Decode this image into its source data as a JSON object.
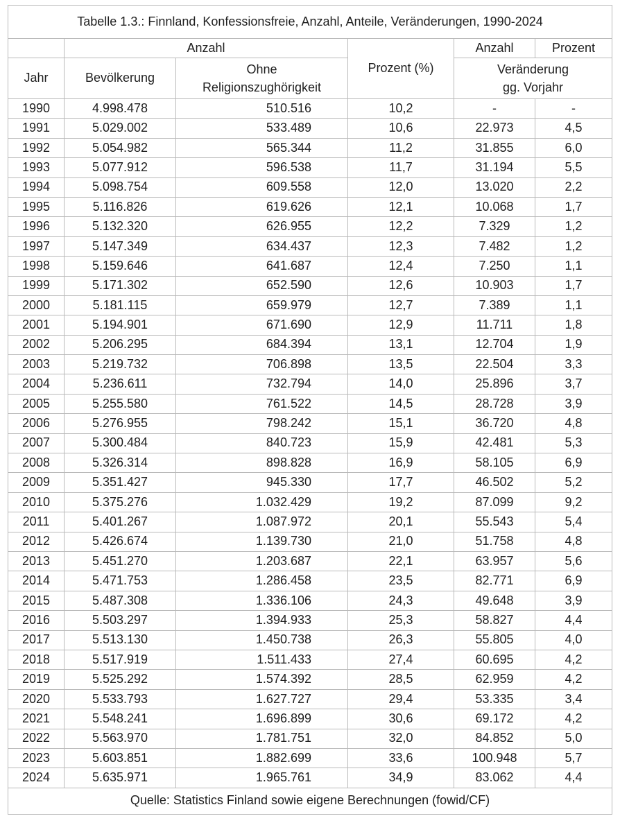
{
  "title": "Tabelle 1.3.: Finnland, Konfessionsfreie, Anzahl, Anteile, Veränderungen, 1990-2024",
  "header": {
    "group_anzahl": "Anzahl",
    "col_jahr": "Jahr",
    "col_bevoelkerung": "Bevölkerung",
    "col_ohne_line1": "Ohne",
    "col_ohne_line2": "Religionszughörigkeit",
    "col_prozent_pct": "Prozent (%)",
    "group_veraenderung_anzahl": "Anzahl",
    "group_veraenderung_prozent": "Prozent",
    "col_veraenderung_line1": "Veränderung",
    "col_veraenderung_line2": "gg. Vorjahr"
  },
  "rows": [
    [
      "1990",
      "4.998.478",
      "510.516",
      "10,2",
      "-",
      "-"
    ],
    [
      "1991",
      "5.029.002",
      "533.489",
      "10,6",
      "22.973",
      "4,5"
    ],
    [
      "1992",
      "5.054.982",
      "565.344",
      "11,2",
      "31.855",
      "6,0"
    ],
    [
      "1993",
      "5.077.912",
      "596.538",
      "11,7",
      "31.194",
      "5,5"
    ],
    [
      "1994",
      "5.098.754",
      "609.558",
      "12,0",
      "13.020",
      "2,2"
    ],
    [
      "1995",
      "5.116.826",
      "619.626",
      "12,1",
      "10.068",
      "1,7"
    ],
    [
      "1996",
      "5.132.320",
      "626.955",
      "12,2",
      "7.329",
      "1,2"
    ],
    [
      "1997",
      "5.147.349",
      "634.437",
      "12,3",
      "7.482",
      "1,2"
    ],
    [
      "1998",
      "5.159.646",
      "641.687",
      "12,4",
      "7.250",
      "1,1"
    ],
    [
      "1999",
      "5.171.302",
      "652.590",
      "12,6",
      "10.903",
      "1,7"
    ],
    [
      "2000",
      "5.181.115",
      "659.979",
      "12,7",
      "7.389",
      "1,1"
    ],
    [
      "2001",
      "5.194.901",
      "671.690",
      "12,9",
      "11.711",
      "1,8"
    ],
    [
      "2002",
      "5.206.295",
      "684.394",
      "13,1",
      "12.704",
      "1,9"
    ],
    [
      "2003",
      "5.219.732",
      "706.898",
      "13,5",
      "22.504",
      "3,3"
    ],
    [
      "2004",
      "5.236.611",
      "732.794",
      "14,0",
      "25.896",
      "3,7"
    ],
    [
      "2005",
      "5.255.580",
      "761.522",
      "14,5",
      "28.728",
      "3,9"
    ],
    [
      "2006",
      "5.276.955",
      "798.242",
      "15,1",
      "36.720",
      "4,8"
    ],
    [
      "2007",
      "5.300.484",
      "840.723",
      "15,9",
      "42.481",
      "5,3"
    ],
    [
      "2008",
      "5.326.314",
      "898.828",
      "16,9",
      "58.105",
      "6,9"
    ],
    [
      "2009",
      "5.351.427",
      "945.330",
      "17,7",
      "46.502",
      "5,2"
    ],
    [
      "2010",
      "5.375.276",
      "1.032.429",
      "19,2",
      "87.099",
      "9,2"
    ],
    [
      "2011",
      "5.401.267",
      "1.087.972",
      "20,1",
      "55.543",
      "5,4"
    ],
    [
      "2012",
      "5.426.674",
      "1.139.730",
      "21,0",
      "51.758",
      "4,8"
    ],
    [
      "2013",
      "5.451.270",
      "1.203.687",
      "22,1",
      "63.957",
      "5,6"
    ],
    [
      "2014",
      "5.471.753",
      "1.286.458",
      "23,5",
      "82.771",
      "6,9"
    ],
    [
      "2015",
      "5.487.308",
      "1.336.106",
      "24,3",
      "49.648",
      "3,9"
    ],
    [
      "2016",
      "5.503.297",
      "1.394.933",
      "25,3",
      "58.827",
      "4,4"
    ],
    [
      "2017",
      "5.513.130",
      "1.450.738",
      "26,3",
      "55.805",
      "4,0"
    ],
    [
      "2018",
      "5.517.919",
      "1.511.433",
      "27,4",
      "60.695",
      "4,2"
    ],
    [
      "2019",
      "5.525.292",
      "1.574.392",
      "28,5",
      "62.959",
      "4,2"
    ],
    [
      "2020",
      "5.533.793",
      "1.627.727",
      "29,4",
      "53.335",
      "3,4"
    ],
    [
      "2021",
      "5.548.241",
      "1.696.899",
      "30,6",
      "69.172",
      "4,2"
    ],
    [
      "2022",
      "5.563.970",
      "1.781.751",
      "32,0",
      "84.852",
      "5,0"
    ],
    [
      "2023",
      "5.603.851",
      "1.882.699",
      "33,6",
      "100.948",
      "5,7"
    ],
    [
      "2024",
      "5.635.971",
      "1.965.761",
      "34,9",
      "83.062",
      "4,4"
    ]
  ],
  "source": "Quelle: Statistics Finland sowie eigene Berechnungen (fowid/CF)",
  "colors": {
    "border": "#b9b9b9",
    "text": "#1f1f1f",
    "background": "#ffffff"
  }
}
